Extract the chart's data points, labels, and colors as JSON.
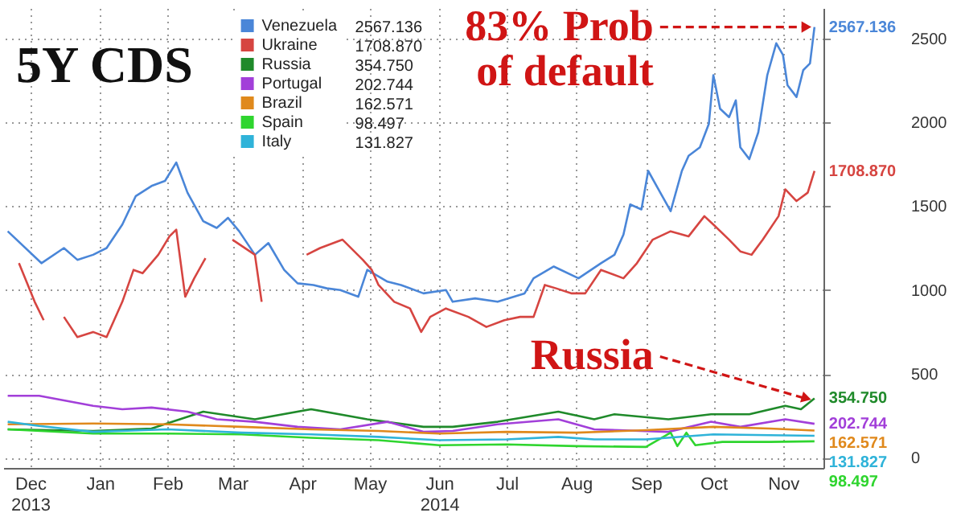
{
  "chart_data": {
    "type": "line",
    "title": "5Y CDS",
    "xlim": [
      "2013-12-04",
      "2014-12-04"
    ],
    "ylim": [
      -60,
      2680
    ],
    "xticks": [
      {
        "value": "2013-12-16",
        "label": "Dec 2013"
      },
      {
        "value": "2014-01-16",
        "label": "Jan"
      },
      {
        "value": "2014-02-15",
        "label": "Feb"
      },
      {
        "value": "2014-03-16",
        "label": "Mar"
      },
      {
        "value": "2014-04-16",
        "label": "Apr"
      },
      {
        "value": "2014-05-16",
        "label": "May"
      },
      {
        "value": "2014-06-16",
        "label": "Jun 2014"
      },
      {
        "value": "2014-07-16",
        "label": "Jul"
      },
      {
        "value": "2014-08-16",
        "label": "Aug"
      },
      {
        "value": "2014-09-16",
        "label": "Sep"
      },
      {
        "value": "2014-10-16",
        "label": "Oct"
      },
      {
        "value": "2014-11-16",
        "label": "Nov"
      }
    ],
    "yticks": [
      0,
      500,
      1000,
      1500,
      2000,
      2500
    ],
    "grid": true,
    "legend": "top",
    "annotations": [
      {
        "text": "83% Prob of default",
        "x": "2014-11-30",
        "y": 2567.136
      },
      {
        "text": "Russia",
        "x": "2014-11-30",
        "y": 354.75
      }
    ],
    "series": [
      {
        "name": "Venezuela",
        "color": "#4a86d8",
        "x": [
          "2013-12-06",
          "2013-12-21",
          "2013-12-31",
          "2014-01-06",
          "2014-01-13",
          "2014-01-19",
          "2014-01-26",
          "2014-02-01",
          "2014-02-08",
          "2014-02-14",
          "2014-02-19",
          "2014-02-24",
          "2014-03-03",
          "2014-03-09",
          "2014-03-14",
          "2014-03-19",
          "2014-03-26",
          "2014-04-01",
          "2014-04-08",
          "2014-04-14",
          "2014-04-21",
          "2014-04-27",
          "2014-05-03",
          "2014-05-11",
          "2014-05-15",
          "2014-05-24",
          "2014-05-30",
          "2014-06-09",
          "2014-06-19",
          "2014-06-22",
          "2014-07-02",
          "2014-07-12",
          "2014-07-24",
          "2014-07-28",
          "2014-08-06",
          "2014-08-17",
          "2014-08-27",
          "2014-09-02",
          "2014-09-06",
          "2014-09-09",
          "2014-09-14",
          "2014-09-17",
          "2014-09-22",
          "2014-09-27",
          "2014-10-02",
          "2014-10-05",
          "2014-10-10",
          "2014-10-14",
          "2014-10-16",
          "2014-10-19",
          "2014-10-23",
          "2014-10-26",
          "2014-10-28",
          "2014-11-01",
          "2014-11-05",
          "2014-11-09",
          "2014-11-13",
          "2014-11-16",
          "2014-11-18",
          "2014-11-22",
          "2014-11-25",
          "2014-11-28",
          "2014-11-30"
        ],
        "values": [
          1350,
          1160,
          1250,
          1180,
          1210,
          1250,
          1390,
          1560,
          1620,
          1650,
          1760,
          1580,
          1410,
          1370,
          1430,
          1350,
          1210,
          1280,
          1120,
          1040,
          1030,
          1010,
          1000,
          960,
          1120,
          1050,
          1030,
          980,
          1000,
          930,
          950,
          930,
          980,
          1070,
          1140,
          1070,
          1160,
          1210,
          1330,
          1510,
          1480,
          1710,
          1590,
          1470,
          1710,
          1800,
          1850,
          1990,
          2280,
          2080,
          2030,
          2130,
          1850,
          1780,
          1940,
          2280,
          2470,
          2400,
          2220,
          2150,
          2310,
          2350,
          2567.136
        ],
        "value_labels": [
          null,
          null,
          null,
          null,
          null,
          null,
          null,
          null,
          null,
          null,
          null,
          null,
          null,
          null,
          null,
          null,
          null,
          null,
          null,
          null,
          null,
          null,
          null,
          null,
          null,
          null,
          null,
          null,
          null,
          null,
          null,
          null,
          null,
          null,
          null,
          null,
          null,
          null,
          null,
          null,
          null,
          null,
          null,
          null,
          null,
          null,
          null,
          null,
          null,
          null,
          null,
          null,
          null,
          null,
          null,
          null,
          null,
          null,
          null,
          null,
          null,
          null,
          "2567.136"
        ]
      },
      {
        "name": "Ukraine",
        "color": "#d64541",
        "x": [
          "2013-12-11",
          "2013-12-18",
          "2013-12-22",
          "2013-12-26",
          "2013-12-31",
          "2014-01-06",
          "2014-01-13",
          "2014-01-19",
          "2014-01-26",
          "2014-01-31",
          "2014-02-04",
          "2014-02-11",
          "2014-02-16",
          "2014-02-19",
          "2014-02-23",
          "2014-02-27",
          "2014-03-04",
          "2014-03-07",
          "2014-03-16",
          "2014-03-26",
          "2014-03-29",
          "2014-04-04",
          "2014-04-18",
          "2014-04-24",
          "2014-05-04",
          "2014-05-13",
          "2014-05-17",
          "2014-05-20",
          "2014-05-27",
          "2014-06-03",
          "2014-06-08",
          "2014-06-12",
          "2014-06-19",
          "2014-06-29",
          "2014-07-07",
          "2014-07-15",
          "2014-07-22",
          "2014-07-28",
          "2014-08-02",
          "2014-08-07",
          "2014-08-14",
          "2014-08-20",
          "2014-08-27",
          "2014-09-06",
          "2014-09-12",
          "2014-09-19",
          "2014-09-27",
          "2014-10-05",
          "2014-10-12",
          "2014-10-16",
          "2014-10-23",
          "2014-10-28",
          "2014-11-02",
          "2014-11-07",
          "2014-11-14",
          "2014-11-17",
          "2014-11-22",
          "2014-11-27",
          "2014-11-30"
        ],
        "values": [
          1160,
          930,
          820,
          null,
          840,
          720,
          750,
          720,
          930,
          1120,
          1100,
          1210,
          1320,
          1360,
          960,
          1070,
          1190,
          null,
          1300,
          1210,
          930,
          null,
          1210,
          1250,
          1300,
          1180,
          1120,
          1030,
          930,
          890,
          750,
          840,
          890,
          840,
          780,
          820,
          840,
          840,
          1030,
          1010,
          980,
          980,
          1120,
          1070,
          1160,
          1300,
          1350,
          1320,
          1440,
          1390,
          1300,
          1230,
          1210,
          1300,
          1440,
          1600,
          1530,
          1580,
          1708.87
        ],
        "value_labels": [
          null,
          null,
          null,
          null,
          null,
          null,
          null,
          null,
          null,
          null,
          null,
          null,
          null,
          null,
          null,
          null,
          null,
          null,
          null,
          null,
          null,
          null,
          null,
          null,
          null,
          null,
          null,
          null,
          null,
          null,
          null,
          null,
          null,
          null,
          null,
          null,
          null,
          null,
          null,
          null,
          null,
          null,
          null,
          null,
          null,
          null,
          null,
          null,
          null,
          null,
          null,
          null,
          null,
          null,
          null,
          null,
          null,
          null,
          "1708.870"
        ]
      },
      {
        "name": "Russia",
        "color": "#1f8a2a",
        "x": [
          "2013-12-06",
          "2014-01-13",
          "2014-02-08",
          "2014-03-03",
          "2014-03-26",
          "2014-04-20",
          "2014-05-15",
          "2014-06-09",
          "2014-06-22",
          "2014-07-12",
          "2014-08-08",
          "2014-08-24",
          "2014-09-02",
          "2014-09-26",
          "2014-10-15",
          "2014-11-01",
          "2014-11-17",
          "2014-11-24",
          "2014-11-30"
        ],
        "values": [
          170,
          160,
          175,
          275,
          230,
          290,
          230,
          185,
          185,
          215,
          275,
          230,
          260,
          230,
          260,
          260,
          310,
          290,
          354.75
        ],
        "value_labels": [
          null,
          null,
          null,
          null,
          null,
          null,
          null,
          null,
          null,
          null,
          null,
          null,
          null,
          null,
          null,
          null,
          null,
          null,
          "354.750"
        ]
      },
      {
        "name": "Portugal",
        "color": "#a23fd9",
        "x": [
          "2013-12-06",
          "2013-12-20",
          "2014-01-01",
          "2014-01-13",
          "2014-01-26",
          "2014-02-08",
          "2014-02-24",
          "2014-03-09",
          "2014-03-26",
          "2014-04-14",
          "2014-05-03",
          "2014-05-24",
          "2014-06-09",
          "2014-06-22",
          "2014-07-12",
          "2014-08-08",
          "2014-08-24",
          "2014-09-26",
          "2014-10-15",
          "2014-10-28",
          "2014-11-17",
          "2014-11-30"
        ],
        "values": [
          370,
          370,
          340,
          310,
          290,
          300,
          275,
          230,
          215,
          185,
          170,
          215,
          155,
          160,
          200,
          230,
          170,
          155,
          215,
          185,
          230,
          202.744
        ],
        "value_labels": [
          null,
          null,
          null,
          null,
          null,
          null,
          null,
          null,
          null,
          null,
          null,
          null,
          null,
          null,
          null,
          null,
          null,
          null,
          null,
          null,
          null,
          "202.744"
        ]
      },
      {
        "name": "Brazil",
        "color": "#e0891c",
        "x": [
          "2013-12-06",
          "2014-01-13",
          "2014-02-15",
          "2014-03-20",
          "2014-04-20",
          "2014-05-20",
          "2014-06-16",
          "2014-07-16",
          "2014-08-16",
          "2014-09-16",
          "2014-10-16",
          "2014-11-10",
          "2014-11-30"
        ],
        "values": [
          200,
          205,
          200,
          185,
          170,
          160,
          145,
          155,
          150,
          165,
          185,
          175,
          162.571
        ],
        "value_labels": [
          null,
          null,
          null,
          null,
          null,
          null,
          null,
          null,
          null,
          null,
          null,
          null,
          "162.571"
        ]
      },
      {
        "name": "Spain",
        "color": "#2fd52f",
        "x": [
          "2013-12-06",
          "2014-01-13",
          "2014-02-15",
          "2014-03-20",
          "2014-04-20",
          "2014-05-20",
          "2014-06-16",
          "2014-07-16",
          "2014-08-16",
          "2014-09-16",
          "2014-09-27",
          "2014-09-30",
          "2014-10-04",
          "2014-10-08",
          "2014-10-20",
          "2014-11-10",
          "2014-11-30"
        ],
        "values": [
          170,
          145,
          145,
          140,
          120,
          105,
          75,
          80,
          70,
          65,
          150,
          70,
          150,
          75,
          95,
          95,
          98.497
        ],
        "value_labels": [
          null,
          null,
          null,
          null,
          null,
          null,
          null,
          null,
          null,
          null,
          null,
          null,
          null,
          null,
          null,
          null,
          "98.497"
        ]
      },
      {
        "name": "Italy",
        "color": "#2fb3d9",
        "x": [
          "2013-12-06",
          "2013-12-20",
          "2014-01-13",
          "2014-02-15",
          "2014-03-20",
          "2014-04-20",
          "2014-05-20",
          "2014-06-16",
          "2014-07-16",
          "2014-08-08",
          "2014-08-24",
          "2014-09-16",
          "2014-10-16",
          "2014-11-10",
          "2014-11-30"
        ],
        "values": [
          215,
          190,
          155,
          170,
          150,
          140,
          125,
          105,
          110,
          125,
          110,
          110,
          140,
          135,
          131.827
        ],
        "value_labels": [
          null,
          null,
          null,
          null,
          null,
          null,
          null,
          null,
          null,
          null,
          null,
          null,
          null,
          null,
          "131.827"
        ]
      }
    ]
  }
}
